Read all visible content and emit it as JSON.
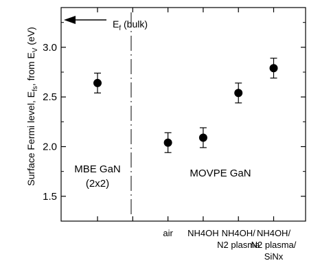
{
  "chart_data": {
    "type": "scatter",
    "title": "",
    "ylabel_parts": {
      "main": "Surface Fermi level, E",
      "sub1": "fs",
      "mid": ", from E",
      "sub2": "V",
      "end": " (eV)"
    },
    "ylim": [
      1.25,
      3.4
    ],
    "yticks": [
      "1.5",
      "2.0",
      "2.5",
      "3.0"
    ],
    "grid": false,
    "points": [
      {
        "label": "MBE",
        "x": 1,
        "y": 2.64,
        "err": 0.1
      },
      {
        "label": "air",
        "x": 3,
        "y": 2.04,
        "err": 0.1
      },
      {
        "label": "NH4OH",
        "x": 4,
        "y": 2.09,
        "err": 0.1
      },
      {
        "label": "NH4OH/N2 plasma",
        "x": 5,
        "y": 2.54,
        "err": 0.1
      },
      {
        "label": "NH4OH/N2 plasma/SiNx",
        "x": 6,
        "y": 2.79,
        "err": 0.1
      }
    ],
    "xtick_labels": [
      {
        "x": 3,
        "lines": [
          "air"
        ]
      },
      {
        "x": 4,
        "lines": [
          "NH4OH"
        ]
      },
      {
        "x": 5,
        "lines": [
          "NH4OH/",
          "N2 plasma"
        ]
      },
      {
        "x": 6,
        "lines": [
          "NH4OH/",
          "N2 plasma/",
          "SiNx"
        ]
      }
    ],
    "annotations": {
      "ef_main": "E",
      "ef_sub": "f",
      "ef_rest": " (bulk)",
      "mbe_line1": "MBE GaN",
      "mbe_line2": "(2x2)",
      "movpe": "MOVPE GaN"
    }
  }
}
